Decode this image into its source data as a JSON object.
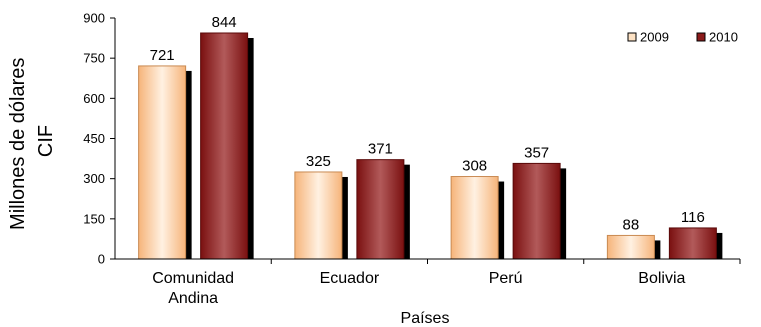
{
  "chart_data": {
    "type": "bar",
    "categories": [
      [
        "Comunidad",
        "Andina"
      ],
      [
        "Ecuador"
      ],
      [
        "Perú"
      ],
      [
        "Bolivia"
      ]
    ],
    "series": [
      {
        "name": "2009",
        "values": [
          721,
          325,
          308,
          88
        ],
        "color": "#f7c08a"
      },
      {
        "name": "2010",
        "values": [
          844,
          371,
          357,
          116
        ],
        "color": "#8b1a1a"
      }
    ],
    "ylabel": [
      "Millones de dólares",
      "CIF"
    ],
    "xlabel": "Países",
    "ylim": [
      0,
      900
    ],
    "yticks": [
      0,
      150,
      300,
      450,
      600,
      750,
      900
    ],
    "grid": false,
    "legend": "top-right"
  }
}
